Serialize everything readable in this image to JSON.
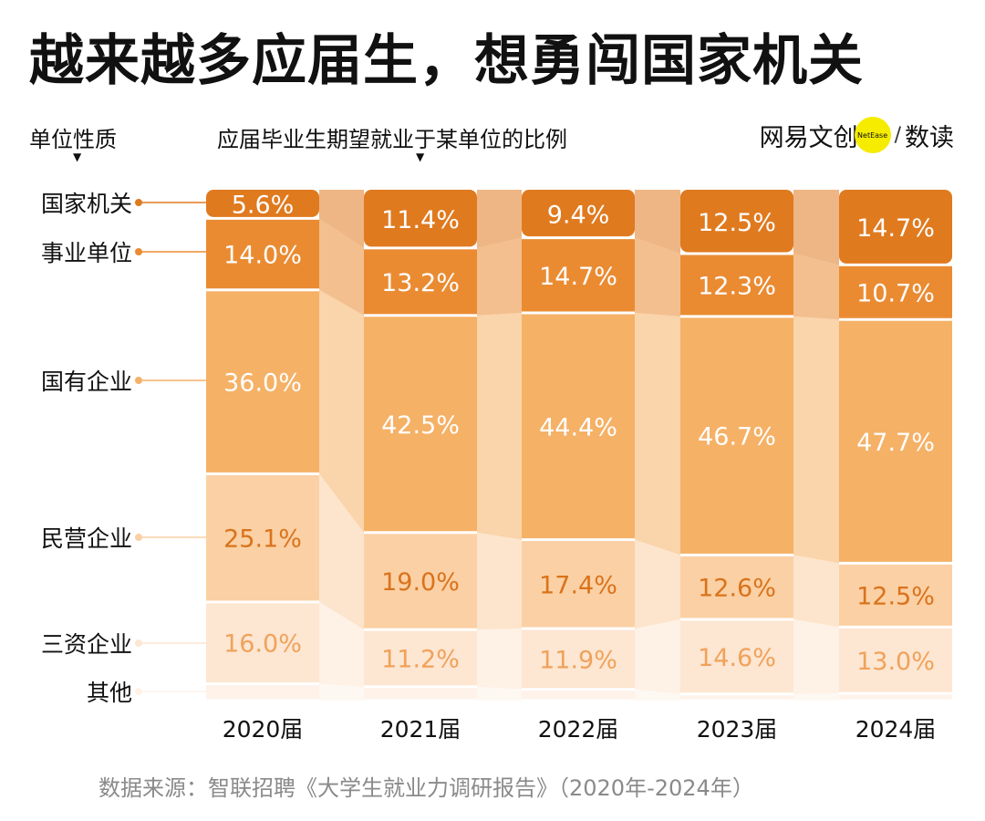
{
  "title": "越来越多应届生，想勇闯国家机关",
  "header": {
    "left_label": "单位性质",
    "mid_label": "应届毕业生期望就业于某单位的比例",
    "brand_text": "网易文创",
    "brand_badge": "NetEase",
    "brand_slash": "/",
    "brand_suffix": "数读"
  },
  "source": "数据来源：智联招聘《大学生就业力调研报告》（2020年-2024年）",
  "colors": {
    "国家机关": "#e07a1f",
    "事业单位": "#ea8b32",
    "国有企业": "#f5b166",
    "民营企业": "#fbd0a4",
    "三资企业": "#fde6d2",
    "其他": "#fef2e9"
  },
  "chart_data": {
    "type": "bar",
    "stacked": true,
    "normalized": true,
    "categories": [
      "2020届",
      "2021届",
      "2022届",
      "2023届",
      "2024届"
    ],
    "series": [
      {
        "name": "国家机关",
        "values": [
          5.6,
          11.4,
          9.4,
          12.5,
          14.7
        ],
        "labels": [
          "5.6%",
          "11.4%",
          "9.4%",
          "12.5%",
          "14.7%"
        ]
      },
      {
        "name": "事业单位",
        "values": [
          14.0,
          13.2,
          14.7,
          12.3,
          10.7
        ],
        "labels": [
          "14.0%",
          "13.2%",
          "14.7%",
          "12.3%",
          "10.7%"
        ]
      },
      {
        "name": "国有企业",
        "values": [
          36.0,
          42.5,
          44.4,
          46.7,
          47.7
        ],
        "labels": [
          "36.0%",
          "42.5%",
          "44.4%",
          "46.7%",
          "47.7%"
        ]
      },
      {
        "name": "民营企业",
        "values": [
          25.1,
          19.0,
          17.4,
          12.6,
          12.5
        ],
        "labels": [
          "25.1%",
          "19.0%",
          "17.4%",
          "12.6%",
          "12.5%"
        ]
      },
      {
        "name": "三资企业",
        "values": [
          16.0,
          11.2,
          11.9,
          14.6,
          13.0
        ],
        "labels": [
          "16.0%",
          "11.2%",
          "11.9%",
          "14.6%",
          "13.0%"
        ]
      },
      {
        "name": "其他",
        "values": [
          3.3,
          2.7,
          2.2,
          1.3,
          1.4
        ],
        "labels": [
          "",
          "",
          "",
          "",
          ""
        ]
      }
    ]
  }
}
